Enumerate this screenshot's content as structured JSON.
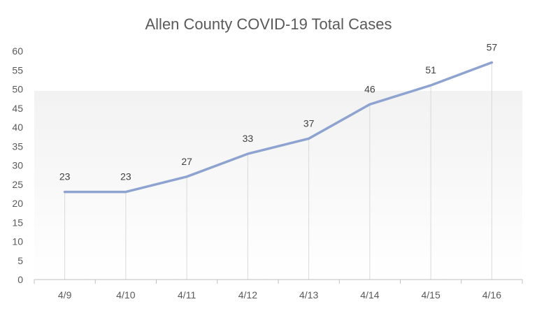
{
  "chart_data": {
    "type": "line",
    "title": "Allen County COVID-19 Total Cases",
    "categories": [
      "4/9",
      "4/10",
      "4/11",
      "4/12",
      "4/13",
      "4/14",
      "4/15",
      "4/16"
    ],
    "series": [
      {
        "values": [
          23,
          23,
          27,
          33,
          37,
          46,
          51,
          57
        ],
        "color": "#8fa3d1"
      }
    ],
    "ylim": [
      0,
      60
    ],
    "yticks": [
      0,
      5,
      10,
      15,
      20,
      25,
      30,
      35,
      40,
      45,
      50,
      55,
      60
    ],
    "data_labels": true,
    "drop_lines": true,
    "grid": false,
    "legend": "none",
    "axis_color": "#bfbfbf",
    "background_gradient": [
      "#f2f2f2",
      "#ffffff"
    ]
  }
}
